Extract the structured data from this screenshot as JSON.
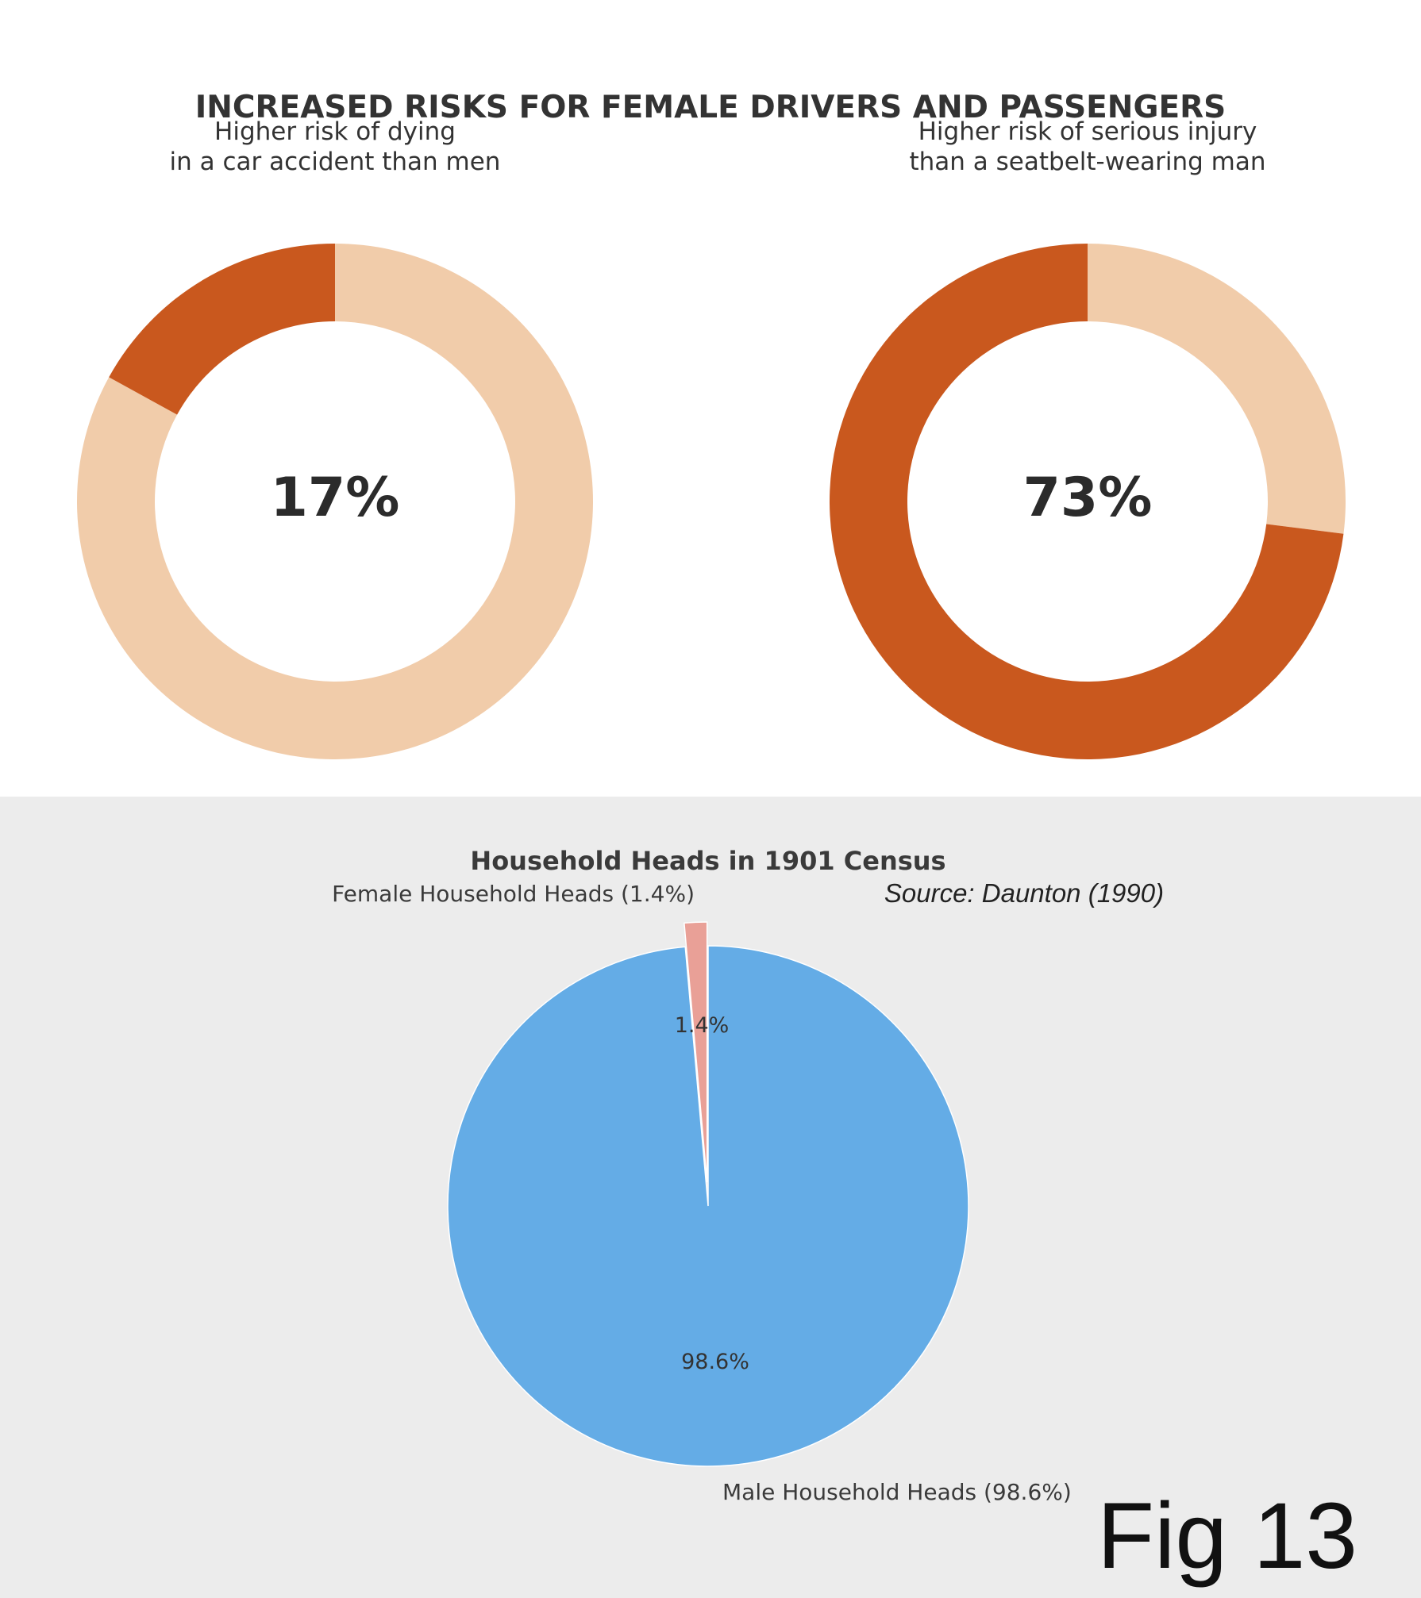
{
  "top": {
    "title": "INCREASED RISKS FOR FEMALE DRIVERS AND PASSENGERS"
  },
  "bottom": {
    "title": "Household Heads in 1901 Census",
    "source": "Source: Daunton (1990)"
  },
  "figure_label": "Fig 13",
  "colors": {
    "donut_highlight": "#c9581e",
    "donut_base": "#f1ccaa",
    "pie_female": "#e9a097",
    "pie_male": "#64ace6",
    "top_background": "#ffffff",
    "bottom_background": "#ececec"
  },
  "chart_data": [
    {
      "type": "pie",
      "subtype": "donut",
      "subtitle_lines": [
        "Higher risk of dying",
        "in a car accident than men"
      ],
      "center_label": "17%",
      "value": 17,
      "start": "top",
      "direction": "counterclockwise"
    },
    {
      "type": "pie",
      "subtype": "donut",
      "subtitle_lines": [
        "Higher risk of serious injury",
        "than a seatbelt-wearing man"
      ],
      "center_label": "73%",
      "value": 73,
      "start": "top",
      "direction": "counterclockwise"
    },
    {
      "type": "pie",
      "title": "Household Heads in 1901 Census",
      "start": "top",
      "direction": "counterclockwise",
      "slices": [
        {
          "label": "Female Household Heads (1.4%)",
          "value": 1.4,
          "pct_label": "1.4%",
          "exploded": true
        },
        {
          "label": "Male Household Heads (98.6%)",
          "value": 98.6,
          "pct_label": "98.6%",
          "exploded": false
        }
      ]
    }
  ]
}
